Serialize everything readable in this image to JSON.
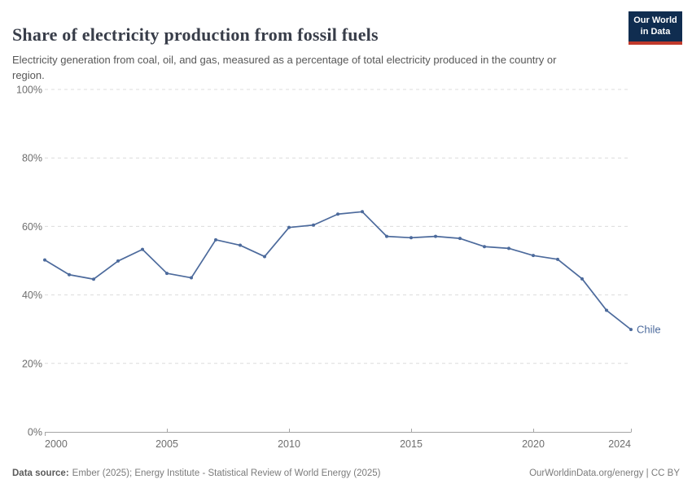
{
  "header": {
    "title": "Share of electricity production from fossil fuels",
    "subtitle": "Electricity generation from coal, oil, and gas, measured as a percentage of total electricity produced in the country or region.",
    "logo": {
      "line1": "Our World",
      "line2": "in Data"
    }
  },
  "chart_data": {
    "type": "line",
    "title": "Share of electricity production from fossil fuels",
    "entity": "Chile",
    "entity_label": "Chile",
    "unit": "%",
    "x": [
      2000,
      2001,
      2002,
      2003,
      2004,
      2005,
      2006,
      2007,
      2008,
      2009,
      2010,
      2011,
      2012,
      2013,
      2014,
      2015,
      2016,
      2017,
      2018,
      2019,
      2020,
      2021,
      2022,
      2023,
      2024
    ],
    "values": [
      50.2,
      45.9,
      44.6,
      49.9,
      53.3,
      46.3,
      45.0,
      56.1,
      54.5,
      51.2,
      59.7,
      60.4,
      63.6,
      64.3,
      57.1,
      56.7,
      57.1,
      56.5,
      54.1,
      53.6,
      51.5,
      50.4,
      44.7,
      35.5,
      29.9
    ],
    "ylim": [
      0,
      100
    ],
    "yticks": [
      0,
      20,
      40,
      60,
      80,
      100
    ],
    "ytick_suffix": "%",
    "xticks": [
      2000,
      2005,
      2010,
      2015,
      2020,
      2024
    ],
    "grid": "horizontal-dashed",
    "legend_position": "end-of-line-label",
    "line_color": "#4C6A9C"
  },
  "footer": {
    "datasource_label": "Data source:",
    "datasource_text": "Ember (2025); Energy Institute - Statistical Review of World Energy (2025)",
    "license_text": "OurWorldinData.org/energy | CC BY"
  },
  "colors": {
    "line": "#4C6A9C",
    "logo_background": "#102D50",
    "logo_stripe": "#C0392B",
    "gridline": "#DCDCDC",
    "axis": "#A5A5A5",
    "tick_label": "#6E6E6E",
    "title_text": "#383D49",
    "subtitle_text": "#575757",
    "footer_text": "#7B7B7B"
  }
}
